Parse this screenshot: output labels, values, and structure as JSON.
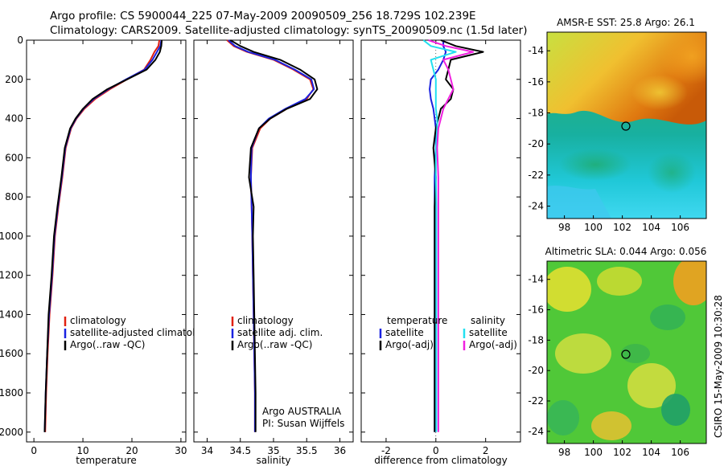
{
  "header": {
    "title_line1": "Argo profile: CS 5900044_225 07-May-2009 20090509_256 18.729S 102.239E",
    "title_line2": "Climatology: CARS2009. Satellite-adjusted climatology: synTS_20090509.nc (1.5d later)"
  },
  "side_stamp": "CSIRO 15-May-2009 10:30:28",
  "colors": {
    "climatology": "#e02010",
    "satellite": "#1a22e0",
    "argo": "#000000",
    "salinity_satellite": "#22e0f0",
    "salinity_argo": "#f020e0"
  },
  "chart_data": [
    {
      "type": "line",
      "panel": "temperature",
      "xlabel": "temperature",
      "ylabel": "",
      "xlim": [
        -1.5,
        31
      ],
      "ylim": [
        2050,
        0
      ],
      "xticks": [
        0,
        10,
        20,
        30
      ],
      "yticks": [
        0,
        200,
        400,
        600,
        800,
        1000,
        1200,
        1400,
        1600,
        1800,
        2000
      ],
      "series": [
        {
          "name": "climatology",
          "color": "#e02010",
          "x": [
            25.6,
            25.4,
            24.6,
            23.8,
            22.5,
            19.0,
            15.5,
            12.5,
            10.3,
            8.7,
            7.6,
            6.5,
            5.8,
            5.0,
            4.3,
            3.8,
            3.2,
            2.8,
            2.5,
            2.3
          ],
          "y": [
            0,
            30,
            60,
            100,
            150,
            200,
            250,
            300,
            350,
            400,
            450,
            550,
            700,
            850,
            1000,
            1200,
            1400,
            1600,
            1800,
            2000
          ]
        },
        {
          "name": "satellite-adjusted climatology",
          "color": "#1a22e0",
          "x": [
            26.0,
            25.8,
            25.1,
            24.2,
            22.6,
            18.8,
            15.2,
            12.2,
            10.1,
            8.6,
            7.5,
            6.4,
            5.7,
            4.9,
            4.2,
            3.7,
            3.1,
            2.7,
            2.4,
            2.2
          ],
          "y": [
            0,
            30,
            60,
            100,
            150,
            200,
            250,
            300,
            350,
            400,
            450,
            550,
            700,
            850,
            1000,
            1200,
            1400,
            1600,
            1800,
            2000
          ]
        },
        {
          "name": "Argo(..raw -QC)",
          "color": "#000000",
          "x": [
            26.1,
            26.0,
            25.7,
            24.8,
            23.0,
            19.0,
            15.0,
            12.0,
            10.0,
            8.5,
            7.4,
            6.3,
            5.6,
            4.8,
            4.1,
            3.6,
            3.0,
            2.7,
            2.4,
            2.2
          ],
          "y": [
            0,
            30,
            60,
            100,
            150,
            200,
            250,
            300,
            350,
            400,
            450,
            550,
            700,
            850,
            1000,
            1200,
            1400,
            1600,
            1800,
            2000
          ]
        }
      ],
      "legend": [
        "climatology",
        "satellite-adjusted climatology",
        "Argo(..raw -QC)"
      ]
    },
    {
      "type": "line",
      "panel": "salinity",
      "xlabel": "salinity",
      "xlim": [
        33.8,
        36.2
      ],
      "ylim": [
        2050,
        0
      ],
      "xticks": [
        34,
        34.5,
        35,
        35.5,
        36
      ],
      "series": [
        {
          "name": "climatology",
          "color": "#e02010",
          "x": [
            34.3,
            34.4,
            34.6,
            35.0,
            35.3,
            35.55,
            35.6,
            35.5,
            35.2,
            34.95,
            34.8,
            34.68,
            34.66,
            34.67,
            34.68,
            34.69,
            34.7,
            34.71,
            34.72,
            34.72
          ],
          "y": [
            0,
            30,
            60,
            100,
            150,
            200,
            250,
            300,
            350,
            400,
            450,
            550,
            700,
            850,
            1000,
            1200,
            1400,
            1600,
            1800,
            2000
          ]
        },
        {
          "name": "satellite adj. clim.",
          "color": "#1a22e0",
          "x": [
            34.32,
            34.42,
            34.62,
            35.02,
            35.32,
            35.57,
            35.61,
            35.48,
            35.18,
            34.93,
            34.78,
            34.67,
            34.66,
            34.67,
            34.68,
            34.69,
            34.7,
            34.71,
            34.72,
            34.72
          ],
          "y": [
            0,
            30,
            60,
            100,
            150,
            200,
            250,
            300,
            350,
            400,
            450,
            550,
            700,
            850,
            1000,
            1200,
            1400,
            1600,
            1800,
            2000
          ]
        },
        {
          "name": "Argo(..raw -QC)",
          "color": "#000000",
          "x": [
            34.35,
            34.5,
            34.7,
            35.1,
            35.4,
            35.62,
            35.66,
            35.55,
            35.2,
            34.95,
            34.78,
            34.66,
            34.63,
            34.7,
            34.69,
            34.7,
            34.71,
            34.72,
            34.73,
            34.73
          ],
          "y": [
            0,
            30,
            60,
            100,
            150,
            200,
            250,
            300,
            350,
            400,
            450,
            550,
            700,
            850,
            1000,
            1200,
            1400,
            1600,
            1800,
            2000
          ]
        }
      ],
      "legend": [
        "climatology",
        "satellite adj. clim.",
        "Argo(..raw -QC)"
      ],
      "annotations": [
        "Argo AUSTRALIA",
        "PI: Susan Wijffels"
      ]
    },
    {
      "type": "line",
      "panel": "difference",
      "xlabel": "difference from climatology",
      "xlim": [
        -3,
        3.4
      ],
      "ylim": [
        2050,
        0
      ],
      "xticks": [
        -2,
        0,
        2
      ],
      "series": [
        {
          "name": "temperature satellite",
          "color": "#1a22e0",
          "x": [
            0.3,
            0.3,
            0.4,
            0.3,
            0.1,
            -0.2,
            -0.25,
            -0.2,
            -0.1,
            -0.05,
            0.0,
            0.0,
            -0.05,
            -0.05,
            -0.05,
            -0.05,
            -0.05,
            -0.05,
            -0.05,
            -0.05
          ],
          "y": [
            0,
            30,
            60,
            100,
            150,
            200,
            250,
            300,
            350,
            400,
            450,
            550,
            700,
            850,
            1000,
            1200,
            1400,
            1600,
            1800,
            2000
          ]
        },
        {
          "name": "temperature Argo(-adj)",
          "color": "#000000",
          "x": [
            0.2,
            0.8,
            1.9,
            0.6,
            0.5,
            0.4,
            0.7,
            0.6,
            0.2,
            0.1,
            0.0,
            -0.1,
            0.0,
            -0.05,
            -0.05,
            -0.05,
            -0.05,
            -0.05,
            -0.05,
            -0.05
          ],
          "y": [
            0,
            30,
            60,
            100,
            150,
            200,
            250,
            300,
            350,
            400,
            450,
            550,
            700,
            850,
            1000,
            1200,
            1400,
            1600,
            1800,
            2000
          ]
        },
        {
          "name": "salinity satellite",
          "color": "#22e0f0",
          "x": [
            -0.5,
            -0.2,
            0.8,
            -0.2,
            -0.1,
            0.0,
            0.0,
            0.0,
            0.0,
            0.05,
            0.05,
            0.0,
            0.0,
            0.02,
            0.02,
            0.02,
            0.02,
            0.02,
            0.02,
            0.02
          ],
          "y": [
            0,
            30,
            60,
            100,
            150,
            200,
            250,
            300,
            350,
            400,
            450,
            550,
            700,
            850,
            1000,
            1200,
            1400,
            1600,
            1800,
            2000
          ]
        },
        {
          "name": "salinity Argo(-adj)",
          "color": "#f020e0",
          "x": [
            -0.3,
            0.4,
            1.5,
            0.3,
            0.5,
            0.6,
            0.7,
            0.5,
            0.3,
            0.2,
            0.1,
            0.05,
            0.1,
            0.1,
            0.1,
            0.1,
            0.1,
            0.1,
            0.1,
            0.1
          ],
          "y": [
            0,
            30,
            60,
            100,
            150,
            200,
            250,
            300,
            350,
            400,
            450,
            550,
            700,
            850,
            1000,
            1200,
            1400,
            1600,
            1800,
            2000
          ]
        }
      ],
      "legend_columns": [
        "temperature",
        "salinity"
      ],
      "legend": [
        "satellite",
        "Argo(-adj)",
        "satellite",
        "Argo(-adj)"
      ]
    },
    {
      "type": "heatmap",
      "panel": "sst_map",
      "title": "AMSR-E SST: 25.8 Argo: 26.1",
      "xlim": [
        96.8,
        107.8
      ],
      "ylim": [
        -24.8,
        -12.8
      ],
      "xticks": [
        98,
        100,
        102,
        104,
        106
      ],
      "yticks": [
        -14,
        -16,
        -18,
        -20,
        -22,
        -24
      ],
      "marker": {
        "lon": 102.239,
        "lat": -18.729
      }
    },
    {
      "type": "heatmap",
      "panel": "sla_map",
      "title": "Altimetric SLA: 0.044 Argo: 0.056",
      "xlim": [
        96.8,
        107.8
      ],
      "ylim": [
        -24.8,
        -12.8
      ],
      "xticks": [
        98,
        100,
        102,
        104,
        106
      ],
      "yticks": [
        -14,
        -16,
        -18,
        -20,
        -22,
        -24
      ],
      "marker": {
        "lon": 102.239,
        "lat": -18.729
      }
    }
  ]
}
